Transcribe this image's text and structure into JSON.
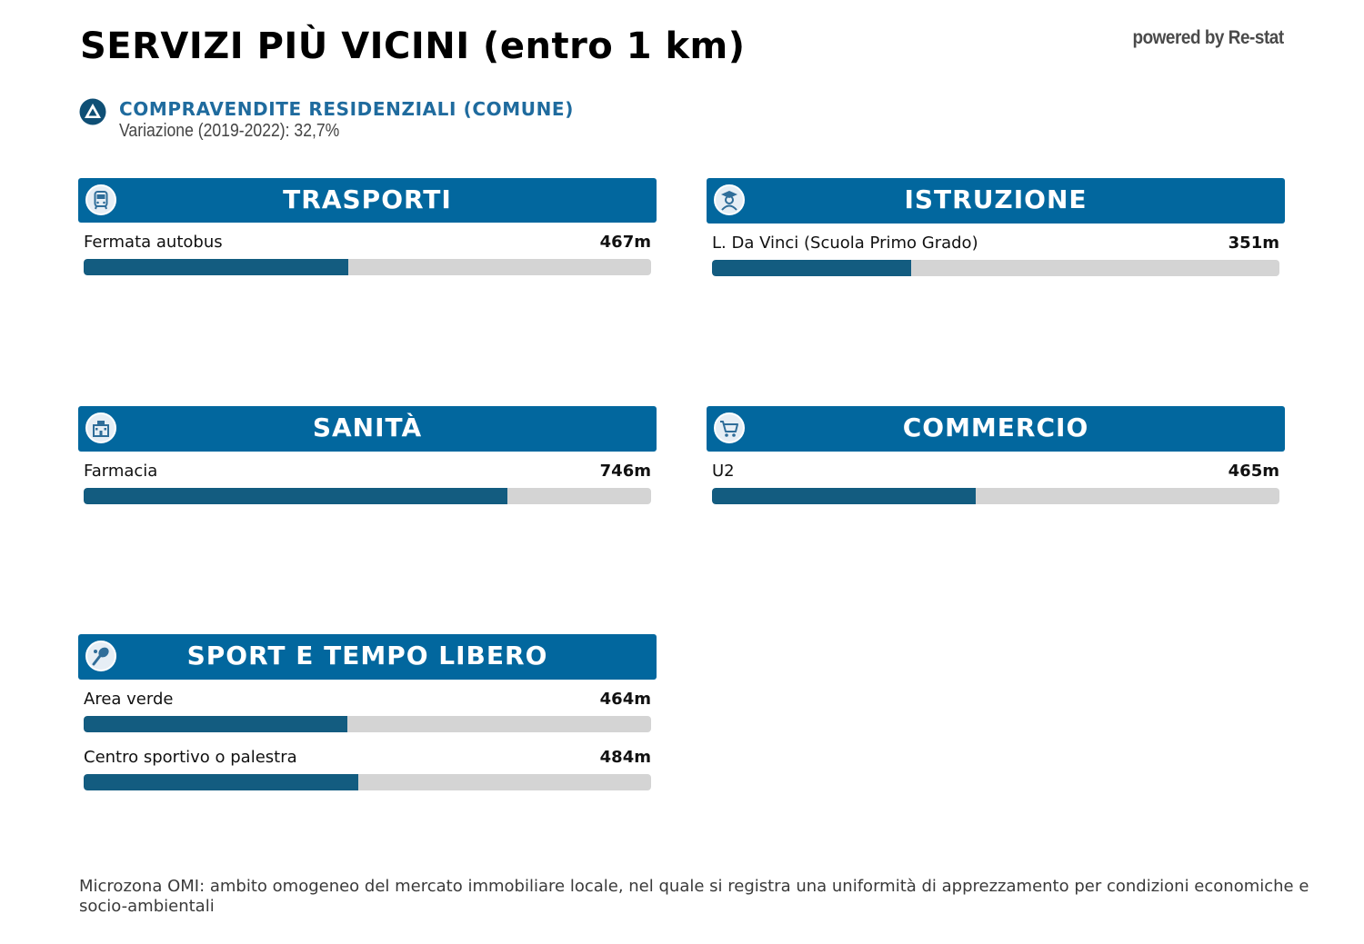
{
  "header": {
    "title": "SERVIZI PIÙ VICINI (entro 1 km)",
    "powered_by": "powered by Re-stat"
  },
  "kpi": {
    "title": "COMPRAVENDITE RESIDENZIALI (COMUNE)",
    "subtitle": "Variazione (2019-2022): 32,7%",
    "direction": "up",
    "icon": "triangle-up-icon"
  },
  "colors": {
    "header_bg": "#02679e",
    "bar_fill": "#135c80",
    "bar_track": "#d4d4d4",
    "kpi_text": "#1f6b9e"
  },
  "chart_data": {
    "type": "bar",
    "orientation": "horizontal",
    "unit": "m",
    "xlim": [
      0,
      1000
    ],
    "panels": [
      {
        "title": "TRASPORTI",
        "icon": "bus-icon",
        "items": [
          {
            "label": "Fermata autobus",
            "value": 467,
            "display": "467m"
          }
        ]
      },
      {
        "title": "ISTRUZIONE",
        "icon": "student-icon",
        "items": [
          {
            "label": "L. Da Vinci (Scuola Primo Grado)",
            "value": 351,
            "display": "351m"
          }
        ]
      },
      {
        "title": "SANITÀ",
        "icon": "hospital-icon",
        "items": [
          {
            "label": "Farmacia",
            "value": 746,
            "display": "746m"
          }
        ]
      },
      {
        "title": "COMMERCIO",
        "icon": "cart-icon",
        "items": [
          {
            "label": "U2",
            "value": 465,
            "display": "465m"
          }
        ]
      },
      {
        "title": "SPORT E TEMPO LIBERO",
        "icon": "racket-icon",
        "items": [
          {
            "label": "Area verde",
            "value": 464,
            "display": "464m"
          },
          {
            "label": "Centro sportivo o palestra",
            "value": 484,
            "display": "484m"
          }
        ]
      }
    ]
  },
  "footnote": "Microzona OMI: ambito omogeneo del mercato immobiliare locale, nel quale si registra una uniformità di apprezzamento per condizioni economiche e socio-ambientali"
}
